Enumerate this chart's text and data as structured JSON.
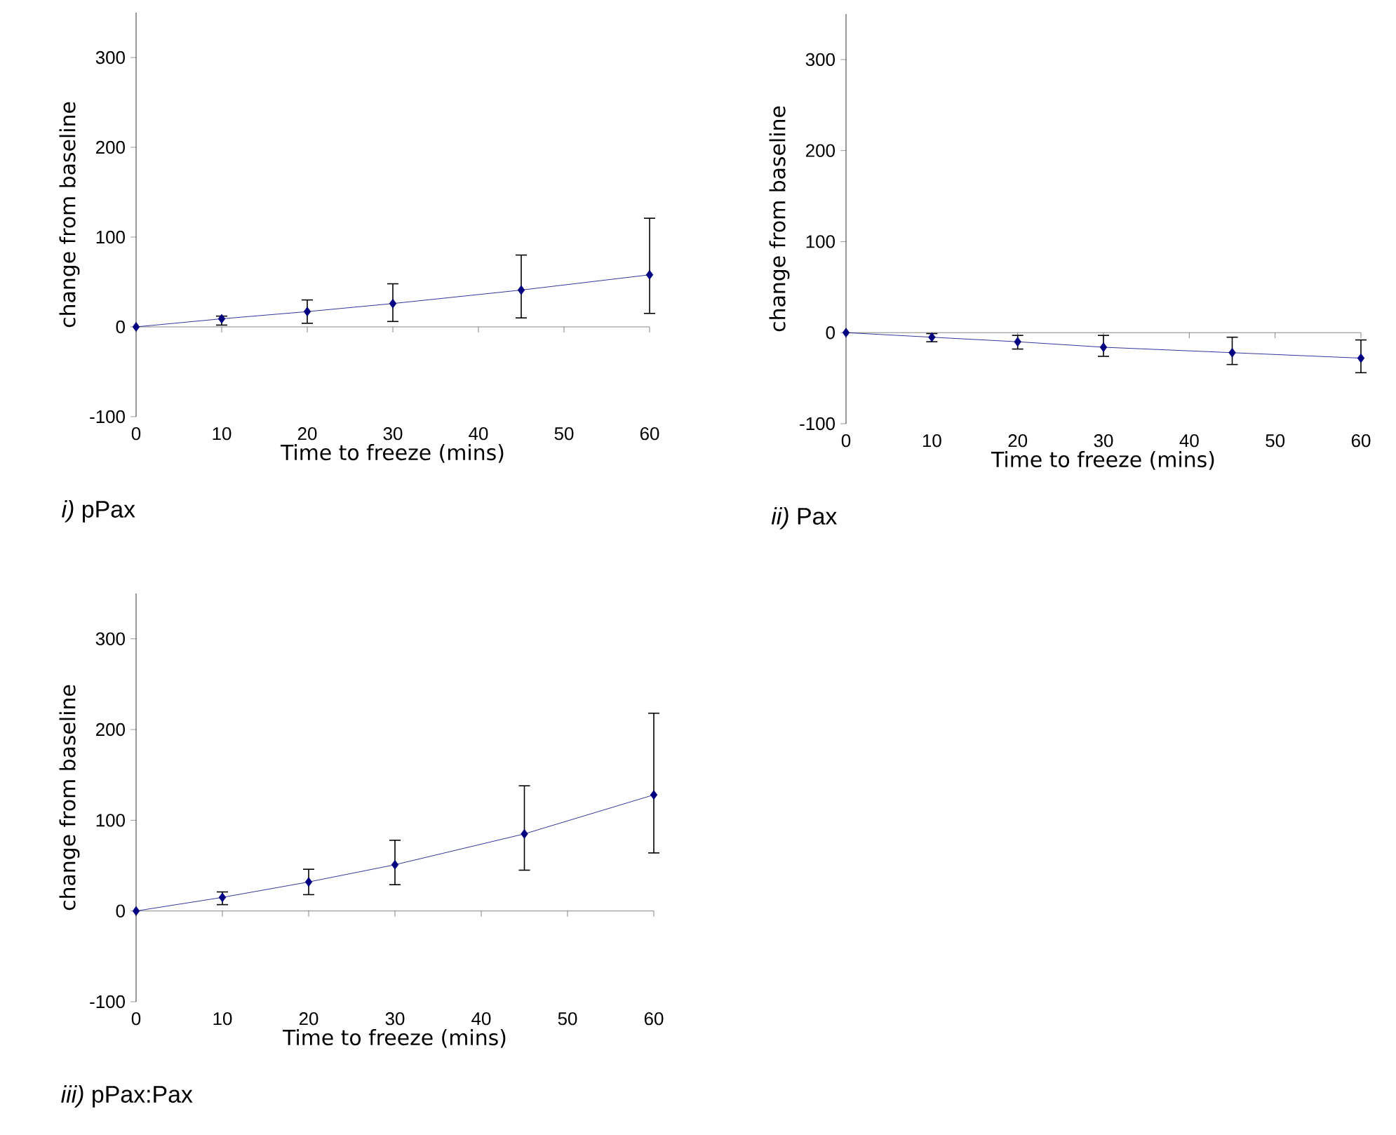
{
  "chart_data": [
    {
      "type": "line",
      "title": "*i)* pPax",
      "xlabel": "Time to freeze (mins)",
      "ylabel": "change from baseline",
      "x": [
        0,
        10,
        20,
        30,
        45,
        60
      ],
      "xlim": [
        0,
        60
      ],
      "ylim": [
        -100,
        350
      ],
      "xticks": [
        0,
        10,
        20,
        30,
        40,
        50,
        60
      ],
      "yticks": [
        -100,
        0,
        100,
        200,
        300
      ],
      "marker": "diamond",
      "line_style": "solid",
      "series": [
        {
          "color": "#000080",
          "values": [
            0,
            9,
            17,
            26,
            41,
            58
          ],
          "errors": [
            null,
            [
              2,
              12
            ],
            [
              4,
              30
            ],
            [
              6,
              48
            ],
            [
              10,
              80
            ],
            [
              15,
              121
            ]
          ]
        }
      ]
    },
    {
      "type": "line",
      "title": "*ii)* Pax",
      "xlabel": "Time to freeze (mins)",
      "ylabel": "change from baseline",
      "x": [
        0,
        10,
        20,
        30,
        45,
        60
      ],
      "xlim": [
        0,
        60
      ],
      "ylim": [
        -100,
        350
      ],
      "xticks": [
        0,
        10,
        20,
        30,
        40,
        50,
        60
      ],
      "yticks": [
        -100,
        0,
        100,
        200,
        300
      ],
      "marker": "diamond",
      "line_style": "solid",
      "series": [
        {
          "color": "#000080",
          "values": [
            0,
            -5,
            -10,
            -16,
            -22,
            -28
          ],
          "errors": [
            null,
            [
              -10,
              -1
            ],
            [
              -18,
              -3
            ],
            [
              -26,
              -3
            ],
            [
              -35,
              -5
            ],
            [
              -44,
              -8
            ]
          ]
        }
      ]
    },
    {
      "type": "line",
      "title": "*iii)* pPax:Pax",
      "xlabel": "Time to freeze (mins)",
      "ylabel": "change from baseline",
      "x": [
        0,
        10,
        20,
        30,
        45,
        60
      ],
      "xlim": [
        0,
        60
      ],
      "ylim": [
        -100,
        350
      ],
      "xticks": [
        0,
        10,
        20,
        30,
        40,
        50,
        60
      ],
      "yticks": [
        -100,
        0,
        100,
        200,
        300
      ],
      "marker": "diamond",
      "line_style": "solid",
      "series": [
        {
          "color": "#000080",
          "values": [
            0,
            15,
            32,
            51,
            85,
            128
          ],
          "errors": [
            null,
            [
              7,
              21
            ],
            [
              18,
              46
            ],
            [
              29,
              78
            ],
            [
              45,
              138
            ],
            [
              64,
              218
            ]
          ]
        }
      ]
    }
  ]
}
